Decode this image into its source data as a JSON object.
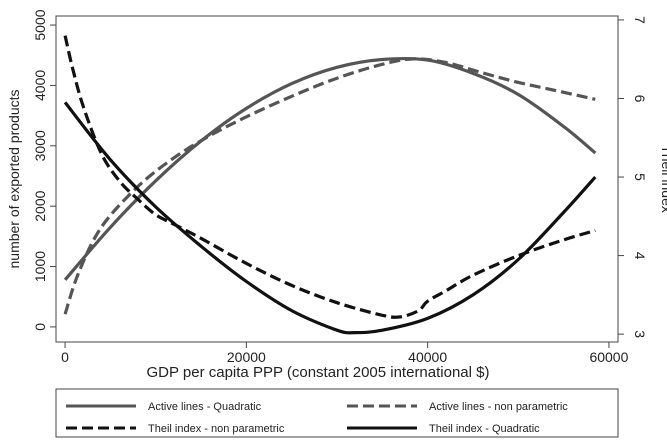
{
  "chart_data": {
    "type": "line",
    "xlabel": "GDP per capita PPP (constant 2005 international $)",
    "ylabel_left": "number of exported products",
    "ylabel_right": "Theil index",
    "xlim": [
      -1000,
      61000
    ],
    "xticks": [
      0,
      20000,
      40000,
      60000
    ],
    "ylim_left": [
      -250,
      5150
    ],
    "yticks_left": [
      0,
      1000,
      2000,
      3000,
      4000,
      5000
    ],
    "ylim_right": [
      2.9,
      7.05
    ],
    "yticks_right": [
      3,
      4,
      5,
      6,
      7
    ],
    "grid": false,
    "legend_position": "bottom",
    "series": [
      {
        "name": "Active lines - Quadratic",
        "axis": "left",
        "color": "#555555",
        "dash": "solid",
        "x": [
          0,
          5000,
          10000,
          15000,
          20000,
          25000,
          30000,
          35000,
          40000,
          45000,
          50000,
          55000,
          58500
        ],
        "y": [
          780,
          1650,
          2420,
          3080,
          3620,
          4030,
          4300,
          4430,
          4420,
          4200,
          3850,
          3320,
          2880
        ]
      },
      {
        "name": "Active lines - non parametric",
        "axis": "left",
        "color": "#555555",
        "dash": "dashed",
        "x": [
          0,
          1500,
          4000,
          8000,
          12000,
          16000,
          20000,
          25000,
          30000,
          35000,
          38500,
          42000,
          46000,
          50000,
          54000,
          58500
        ],
        "y": [
          210,
          900,
          1650,
          2320,
          2800,
          3170,
          3480,
          3820,
          4120,
          4350,
          4440,
          4380,
          4210,
          4050,
          3920,
          3770
        ]
      },
      {
        "name": "Theil index - non parametric",
        "axis": "right",
        "color": "#111111",
        "dash": "dashed",
        "x": [
          0,
          800,
          2000,
          4000,
          6000,
          8000,
          10000,
          12000,
          15000,
          20000,
          25000,
          30000,
          35000,
          37000,
          39000,
          40000,
          42000,
          45000,
          50000,
          55000,
          58500
        ],
        "y": [
          6.8,
          6.4,
          5.9,
          5.3,
          4.95,
          4.72,
          4.52,
          4.4,
          4.22,
          3.9,
          3.62,
          3.4,
          3.24,
          3.22,
          3.3,
          3.42,
          3.55,
          3.75,
          4.0,
          4.2,
          4.32
        ]
      },
      {
        "name": "Theil index - Quadratic",
        "axis": "right",
        "color": "#111111",
        "dash": "solid",
        "x": [
          0,
          5000,
          10000,
          15000,
          20000,
          25000,
          30000,
          32000,
          35000,
          40000,
          45000,
          50000,
          55000,
          58500
        ],
        "y": [
          5.95,
          5.22,
          4.62,
          4.12,
          3.67,
          3.3,
          3.05,
          3.02,
          3.05,
          3.2,
          3.5,
          3.95,
          4.55,
          5.0
        ]
      }
    ]
  }
}
